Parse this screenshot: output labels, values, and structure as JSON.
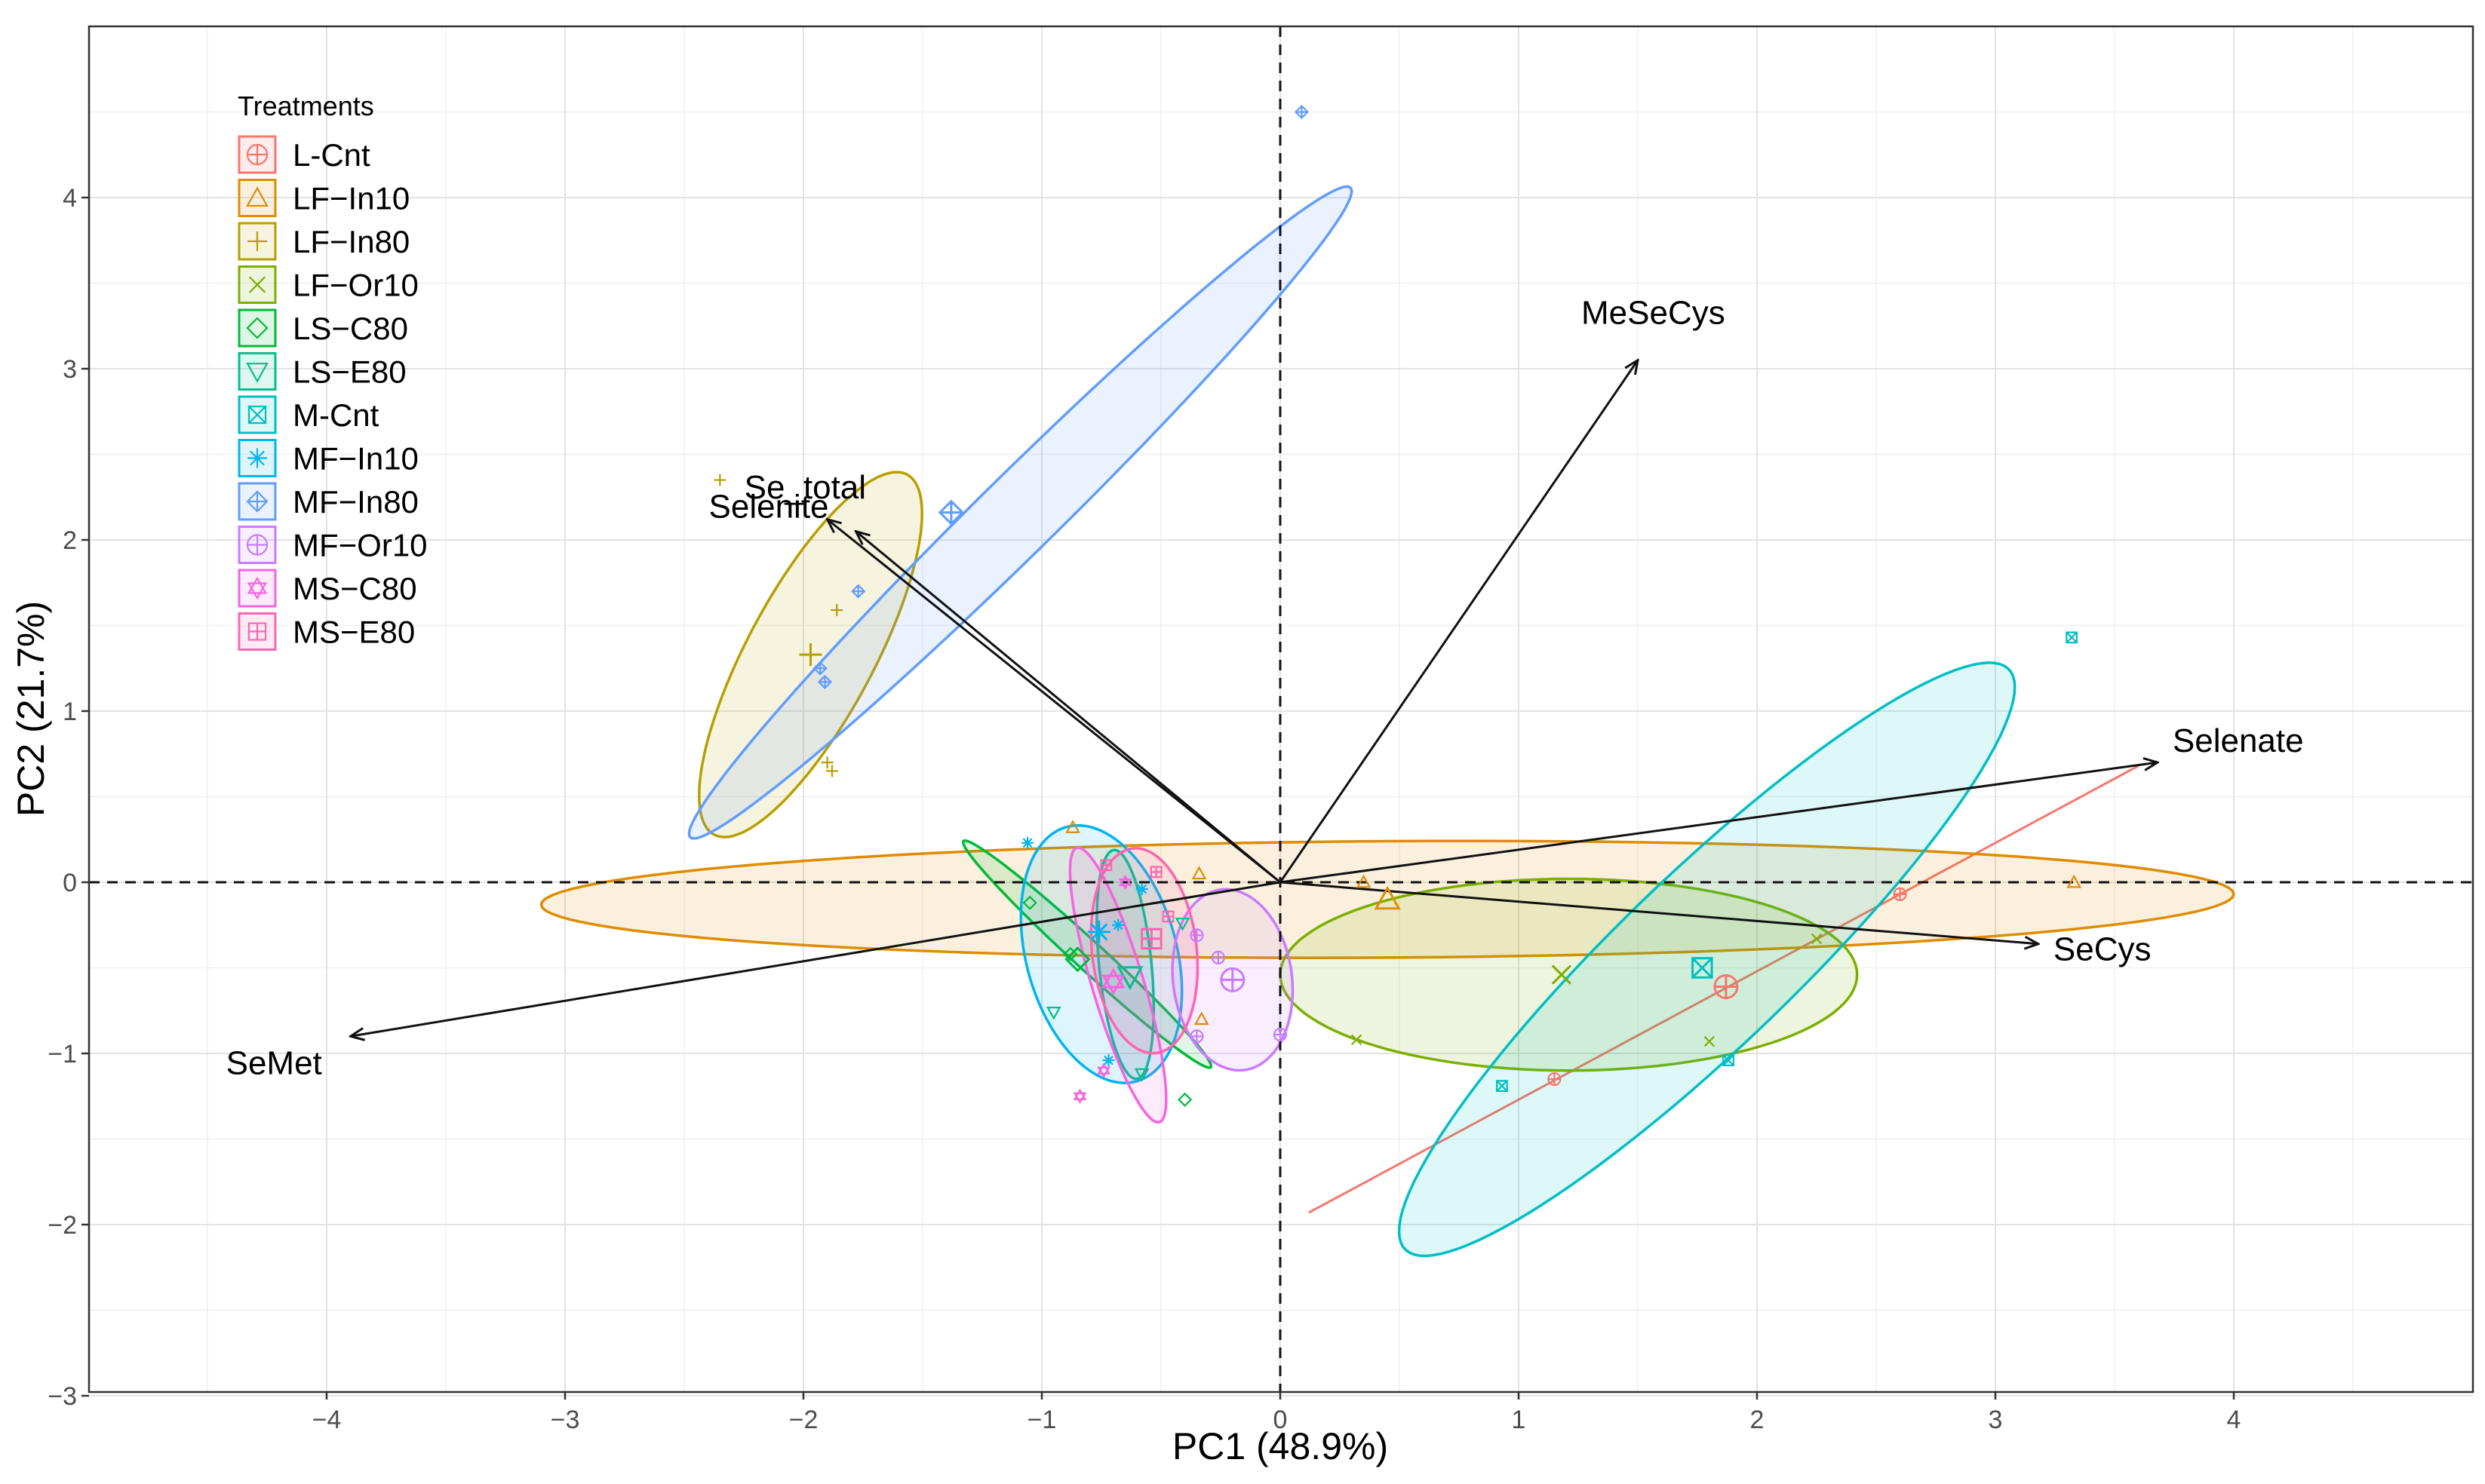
{
  "chart_data": {
    "type": "scatter",
    "subtype": "pca-biplot",
    "xlabel": "PC1 (48.9%)",
    "ylabel": "PC2 (21.7%)",
    "xlim": [
      -5,
      5
    ],
    "ylim": [
      -3,
      5
    ],
    "xticks": [
      -4,
      -3,
      -2,
      -1,
      0,
      1,
      2,
      3,
      4
    ],
    "yticks": [
      -3,
      -2,
      -1,
      0,
      1,
      2,
      3,
      4
    ],
    "xtick_labels": [
      "−4",
      "−3",
      "−2",
      "−1",
      "0",
      "1",
      "2",
      "3",
      "4"
    ],
    "ytick_labels": [
      "−3",
      "−2",
      "−1",
      "0",
      "1",
      "2",
      "3",
      "4"
    ],
    "grid": true,
    "reference_lines": {
      "x": 0,
      "y": 0,
      "style": "dashed"
    },
    "legend": {
      "title": "Treatments",
      "position": "top-left",
      "entries": [
        {
          "label": "L-Cnt",
          "color": "#F8766D",
          "shape": "circle-plus"
        },
        {
          "label": "LF−In10",
          "color": "#DE8C00",
          "shape": "triangle"
        },
        {
          "label": "LF−In80",
          "color": "#B79F00",
          "shape": "plus"
        },
        {
          "label": "LF−Or10",
          "color": "#7CAE00",
          "shape": "cross"
        },
        {
          "label": "LS−C80",
          "color": "#00BA38",
          "shape": "diamond"
        },
        {
          "label": "LS−E80",
          "color": "#00C08B",
          "shape": "triangle-down"
        },
        {
          "label": "M-Cnt",
          "color": "#00BFC4",
          "shape": "square-x"
        },
        {
          "label": "MF−In10",
          "color": "#00B4F0",
          "shape": "asterisk"
        },
        {
          "label": "MF−In80",
          "color": "#619CFF",
          "shape": "diamond-plus"
        },
        {
          "label": "MF−Or10",
          "color": "#C77CFF",
          "shape": "circle-plus"
        },
        {
          "label": "MS−C80",
          "color": "#F564E3",
          "shape": "star"
        },
        {
          "label": "MS−E80",
          "color": "#FF64B0",
          "shape": "square-plus"
        }
      ]
    },
    "loadings": [
      {
        "label": "Se_total",
        "x": -1.9,
        "y": 2.12
      },
      {
        "label": "Selenite",
        "x": -1.78,
        "y": 2.05
      },
      {
        "label": "MeSeCys",
        "x": 1.5,
        "y": 3.05
      },
      {
        "label": "Selenate",
        "x": 3.68,
        "y": 0.7
      },
      {
        "label": "SeCys",
        "x": 3.18,
        "y": -0.36
      },
      {
        "label": "SeMet",
        "x": -3.9,
        "y": -0.9
      }
    ],
    "groups": [
      {
        "name": "L-Cnt",
        "color": "#F8766D",
        "centroid": [
          1.87,
          -0.61
        ],
        "ellipse": {
          "type": "line",
          "from": [
            0.12,
            -1.93
          ],
          "to": [
            3.6,
            0.68
          ]
        },
        "points": [
          [
            1.15,
            -1.15
          ],
          [
            2.6,
            -0.07
          ]
        ]
      },
      {
        "name": "LF−In10",
        "color": "#DE8C00",
        "centroid": [
          0.45,
          -0.1
        ],
        "ellipse": {
          "cx": 0.45,
          "cy": -0.1,
          "rx": 3.55,
          "ry": 0.34,
          "angle": 0.5
        },
        "points": [
          [
            -0.87,
            0.32
          ],
          [
            -0.34,
            0.05
          ],
          [
            -0.33,
            -0.8
          ],
          [
            3.33,
            0.0
          ],
          [
            0.35,
            0.0
          ]
        ]
      },
      {
        "name": "LF−In80",
        "color": "#B79F00",
        "centroid": [
          -1.97,
          1.33
        ],
        "ellipse": {
          "cx": -1.97,
          "cy": 1.33,
          "rx": 1.13,
          "ry": 0.28,
          "angle": 70
        },
        "points": [
          [
            -2.35,
            2.35
          ],
          [
            -1.86,
            1.59
          ],
          [
            -1.9,
            0.7
          ],
          [
            -1.88,
            0.65
          ]
        ]
      },
      {
        "name": "LF−Or10",
        "color": "#7CAE00",
        "centroid": [
          1.18,
          -0.54
        ],
        "ellipse": {
          "cx": 1.21,
          "cy": -0.54,
          "rx": 1.21,
          "ry": 0.56,
          "angle": 0
        },
        "points": [
          [
            0.32,
            -0.92
          ],
          [
            1.8,
            -0.93
          ],
          [
            2.25,
            -0.33
          ]
        ]
      },
      {
        "name": "LS−C80",
        "color": "#00BA38",
        "centroid": [
          -0.85,
          -0.45
        ],
        "ellipse": {
          "cx": -0.81,
          "cy": -0.42,
          "rx": 0.84,
          "ry": 0.07,
          "angle": -52
        },
        "points": [
          [
            -0.4,
            -1.27
          ],
          [
            -0.88,
            -0.42
          ],
          [
            -1.05,
            -0.12
          ]
        ]
      },
      {
        "name": "LS−E80",
        "color": "#00C08B",
        "centroid": [
          -0.63,
          -0.55
        ],
        "ellipse": {
          "cx": -0.65,
          "cy": -0.48,
          "rx": 0.67,
          "ry": 0.11,
          "angle": -86
        },
        "points": [
          [
            -0.95,
            -0.76
          ],
          [
            -0.58,
            -1.12
          ],
          [
            -0.41,
            -0.24
          ]
        ]
      },
      {
        "name": "M-Cnt",
        "color": "#00BFC4",
        "centroid": [
          1.77,
          -0.5
        ],
        "ellipse": {
          "cx": 1.79,
          "cy": -0.45,
          "rx": 2.12,
          "ry": 0.42,
          "angle": 54
        },
        "points": [
          [
            3.32,
            1.43
          ],
          [
            0.93,
            -1.19
          ],
          [
            1.88,
            -1.04
          ]
        ]
      },
      {
        "name": "MF−In10",
        "color": "#00B4F0",
        "centroid": [
          -0.76,
          -0.29
        ],
        "ellipse": {
          "cx": -0.75,
          "cy": -0.42,
          "rx": 0.76,
          "ry": 0.32,
          "angle": -81
        },
        "points": [
          [
            -1.06,
            0.23
          ],
          [
            -0.58,
            -0.04
          ],
          [
            -0.72,
            -1.04
          ],
          [
            -0.68,
            -0.25
          ]
        ]
      },
      {
        "name": "MF−In80",
        "color": "#619CFF",
        "centroid": [
          -1.38,
          2.16
        ],
        "ellipse": {
          "cx": -1.09,
          "cy": 2.16,
          "rx": 2.35,
          "ry": 0.19,
          "angle": 54
        },
        "points": [
          [
            0.09,
            4.5
          ],
          [
            -1.77,
            1.7
          ],
          [
            -1.93,
            1.25
          ],
          [
            -1.91,
            1.17
          ]
        ]
      },
      {
        "name": "MF−Or10",
        "color": "#C77CFF",
        "centroid": [
          -0.2,
          -0.57
        ],
        "ellipse": {
          "cx": -0.2,
          "cy": -0.57,
          "rx": 0.53,
          "ry": 0.25,
          "angle": -86
        },
        "points": [
          [
            -0.26,
            -0.44
          ],
          [
            -0.35,
            -0.9
          ],
          [
            0.0,
            -0.89
          ],
          [
            -0.35,
            -0.31
          ]
        ]
      },
      {
        "name": "MS−C80",
        "color": "#F564E3",
        "centroid": [
          -0.7,
          -0.58
        ],
        "ellipse": {
          "cx": -0.68,
          "cy": -0.6,
          "rx": 0.82,
          "ry": 0.11,
          "angle": -78
        },
        "points": [
          [
            -0.84,
            -1.25
          ],
          [
            -0.65,
            0.0
          ],
          [
            -0.74,
            -1.1
          ]
        ]
      },
      {
        "name": "MS−E80",
        "color": "#FF64B0",
        "centroid": [
          -0.54,
          -0.33
        ],
        "ellipse": {
          "cx": -0.57,
          "cy": -0.4,
          "rx": 0.6,
          "ry": 0.22,
          "angle": -86
        },
        "points": [
          [
            -0.73,
            0.1
          ],
          [
            -0.47,
            -0.2
          ],
          [
            -0.52,
            0.06
          ]
        ]
      }
    ]
  }
}
